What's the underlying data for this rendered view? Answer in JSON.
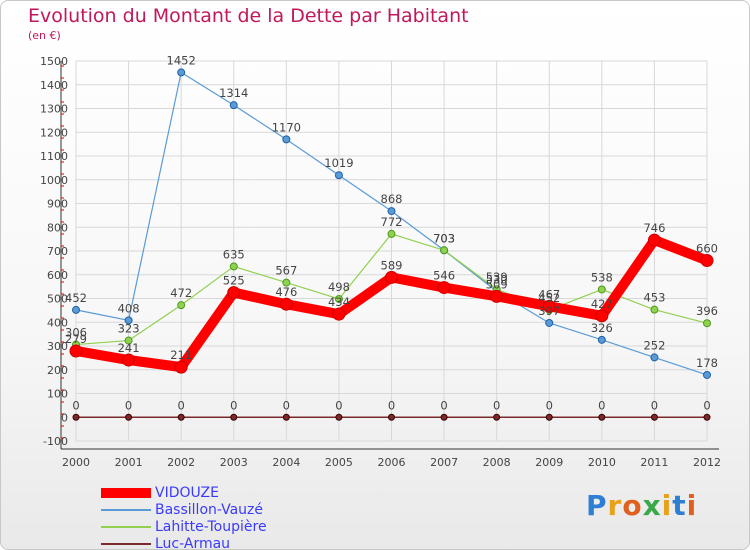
{
  "header": {
    "title": "Evolution du Montant de la Dette par Habitant",
    "unit": "(en €)"
  },
  "logo": {
    "text": "Proxiti"
  },
  "chart_data": {
    "type": "line",
    "title": "Evolution du Montant de la Dette par Habitant",
    "ylabel": "(en €)",
    "xlabel": "",
    "x": [
      "2000",
      "2001",
      "2002",
      "2003",
      "2004",
      "2005",
      "2006",
      "2007",
      "2008",
      "2009",
      "2010",
      "2011",
      "2012"
    ],
    "ylim": [
      -100,
      1500
    ],
    "yticks": [
      -100,
      0,
      100,
      200,
      300,
      400,
      500,
      600,
      700,
      800,
      900,
      1000,
      1100,
      1200,
      1300,
      1400,
      1500
    ],
    "grid": true,
    "legend": "bottom-left",
    "series": [
      {
        "name": "VIDOUZE",
        "color": "#ff0000",
        "values": [
          279,
          241,
          211,
          525,
          476,
          434,
          589,
          546,
          509,
          467,
          427,
          746,
          660
        ]
      },
      {
        "name": "Bassillon-Vauzé",
        "color": "#5b9bd5",
        "values": [
          452,
          408,
          1452,
          1314,
          1170,
          1019,
          868,
          703,
          530,
          397,
          326,
          252,
          178
        ]
      },
      {
        "name": "Lahitte-Toupière",
        "color": "#92d050",
        "values": [
          306,
          323,
          472,
          635,
          567,
          498,
          772,
          703,
          539,
          452,
          538,
          453,
          396
        ]
      },
      {
        "name": "Luc-Armau",
        "color": "#7a2a2a",
        "values": [
          0,
          0,
          0,
          0,
          0,
          0,
          0,
          0,
          0,
          0,
          0,
          0,
          0
        ]
      }
    ]
  }
}
